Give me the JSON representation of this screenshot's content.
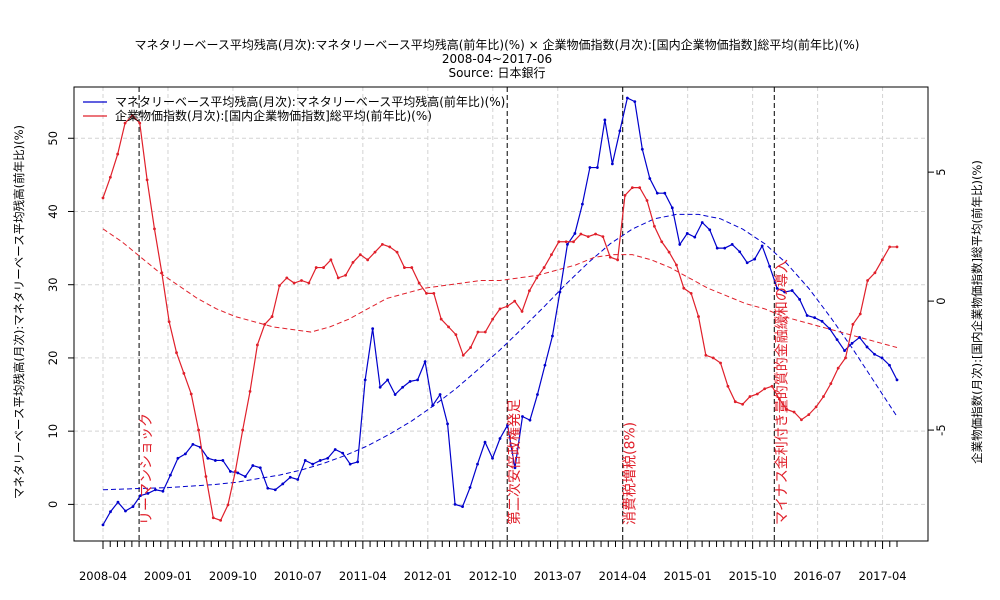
{
  "chart_data": {
    "type": "line",
    "title": "マネタリーベース平均残高(月次):マネタリーベース平均残高(前年比)(%) × 企業物価指数(月次):[国内企業物価指数]総平均(前年比)(%)",
    "subtitle": "2008-04~2017-06",
    "source": "Source: 日本銀行",
    "ylabel_left": "マネタリーベース平均残高(月次):マネタリーベース平均残高(前年比)(%)",
    "ylabel_right": "企業物価指数(月次):[国内企業物価指数]総平均(前年比)(%)",
    "x_start": "2008-04",
    "x_end": "2017-06",
    "x_ticks": [
      "2008-04",
      "2009-01",
      "2009-10",
      "2010-07",
      "2011-04",
      "2012-01",
      "2012-10",
      "2013-07",
      "2014-04",
      "2015-01",
      "2015-10",
      "2016-07",
      "2017-04"
    ],
    "ylim_left": [
      -5,
      57
    ],
    "ylim_right": [
      -9.3,
      8.3
    ],
    "yticks_left": [
      0,
      10,
      20,
      30,
      40,
      50
    ],
    "yticks_right": [
      -5,
      0,
      5
    ],
    "ytick_labels_right": [
      "-5",
      "0",
      "5"
    ],
    "grid": true,
    "legend_position": "top-left",
    "series": [
      {
        "name": "マネタリーベース平均残高(月次):マネタリーベース平均残高(前年比)(%)",
        "axis": "left",
        "color": "#0000cc",
        "values": [
          -2.8,
          -1.0,
          0.3,
          -0.9,
          -0.3,
          1.2,
          1.5,
          2.0,
          1.8,
          4.0,
          6.3,
          6.9,
          8.2,
          7.8,
          6.3,
          6.0,
          6.0,
          4.5,
          4.3,
          3.8,
          5.3,
          5.0,
          2.2,
          2.0,
          2.8,
          3.7,
          3.4,
          6.0,
          5.5,
          6.0,
          6.3,
          7.5,
          7.0,
          5.5,
          5.8,
          17.0,
          24.0,
          16.0,
          17.0,
          15.0,
          16.0,
          16.8,
          17.0,
          19.5,
          13.5,
          15.0,
          11.0,
          0.0,
          -0.3,
          2.3,
          5.5,
          8.5,
          6.3,
          9.0,
          10.8,
          5.0,
          12.0,
          11.5,
          15.0,
          19.0,
          23.0,
          29.0,
          35.5,
          37.0,
          41.0,
          46.0,
          46.0,
          52.5,
          46.5,
          51.0,
          55.5,
          55.0,
          48.5,
          44.5,
          42.5,
          42.5,
          40.5,
          35.5,
          37.0,
          36.5,
          38.5,
          37.5,
          35.0,
          35.0,
          35.5,
          34.5,
          33.0,
          33.5,
          35.3,
          32.5,
          29.5,
          29.0,
          29.2,
          28.0,
          25.8,
          25.5,
          25.0,
          24.0,
          22.5,
          21.0,
          22.0,
          22.8,
          21.5,
          20.5,
          20.0,
          19.0,
          17.0
        ]
      },
      {
        "name": "企業物価指数(月次):[国内企業物価指数]総平均(前年比)(%)",
        "axis": "right",
        "color": "#e0202b",
        "values": [
          4.0,
          4.8,
          5.7,
          6.9,
          7.2,
          6.9,
          4.7,
          2.8,
          1.1,
          -0.8,
          -2.0,
          -2.8,
          -3.6,
          -5.0,
          -6.8,
          -8.4,
          -8.5,
          -7.9,
          -6.6,
          -5.0,
          -3.5,
          -1.7,
          -0.9,
          -0.6,
          0.6,
          0.9,
          0.7,
          0.8,
          0.7,
          1.3,
          1.3,
          1.6,
          0.9,
          1.0,
          1.5,
          1.8,
          1.6,
          1.9,
          2.2,
          2.1,
          1.9,
          1.3,
          1.3,
          0.7,
          0.3,
          0.3,
          -0.7,
          -1.0,
          -1.3,
          -2.1,
          -1.8,
          -1.2,
          -1.2,
          -0.7,
          -0.3,
          -0.2,
          0.0,
          -0.4,
          0.4,
          0.9,
          1.3,
          1.8,
          2.3,
          2.3,
          2.3,
          2.6,
          2.5,
          2.6,
          2.5,
          1.7,
          1.6,
          4.1,
          4.4,
          4.4,
          3.9,
          2.9,
          2.3,
          1.9,
          1.4,
          0.5,
          0.3,
          -0.6,
          -2.1,
          -2.2,
          -2.4,
          -3.3,
          -3.9,
          -4.0,
          -3.7,
          -3.6,
          -3.4,
          -3.3,
          -3.8,
          -4.2,
          -4.3,
          -4.6,
          -4.4,
          -4.1,
          -3.7,
          -3.2,
          -2.6,
          -2.2,
          -0.9,
          -0.5,
          0.8,
          1.1,
          1.6,
          2.1,
          2.1
        ]
      }
    ],
    "trend_lines": [
      {
        "axis": "left",
        "color": "#0000cc",
        "style": "dashed",
        "values": [
          2.0,
          2.1,
          2.2,
          2.3,
          2.5,
          2.7,
          3.0,
          3.5,
          4.0,
          4.7,
          5.6,
          6.7,
          8.0,
          9.6,
          11.4,
          13.5,
          15.8,
          18.4,
          21.1,
          24.0,
          27.0,
          30.1,
          33.0,
          35.6,
          37.6,
          39.0,
          39.6,
          39.6,
          39.0,
          37.6,
          35.6,
          32.9,
          29.5,
          25.5,
          21.2,
          16.6,
          12.0
        ]
      },
      {
        "axis": "right",
        "color": "#e0202b",
        "style": "dashed",
        "values": [
          2.8,
          2.3,
          1.7,
          1.1,
          0.6,
          0.1,
          -0.3,
          -0.6,
          -0.8,
          -1.0,
          -1.1,
          -1.2,
          -1.0,
          -0.7,
          -0.3,
          0.1,
          0.3,
          0.5,
          0.6,
          0.7,
          0.8,
          0.8,
          0.9,
          1.0,
          1.2,
          1.4,
          1.7,
          1.8,
          1.8,
          1.6,
          1.3,
          0.9,
          0.5,
          0.2,
          -0.1,
          -0.3,
          -0.6,
          -0.8,
          -1.0,
          -1.2,
          -1.4,
          -1.6,
          -1.8
        ]
      }
    ],
    "annotations": [
      {
        "label": "リーマンショック",
        "date": "2008-09"
      },
      {
        "label": "第二次安倍政権発足",
        "date": "2012-12"
      },
      {
        "label": "消費税増税(8%)",
        "date": "2014-04"
      },
      {
        "label": "マイナス金利付き量的質的金融緩和の導入",
        "date": "2016-01"
      }
    ]
  }
}
